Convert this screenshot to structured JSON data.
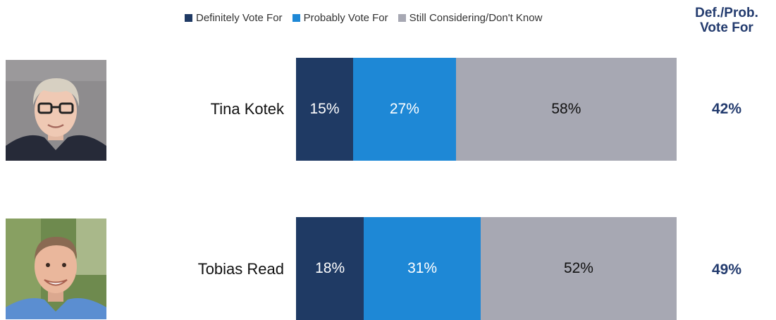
{
  "colors": {
    "definitely": "#1f3a64",
    "probably": "#1e88d6",
    "considering": "#a7a8b3",
    "total_text": "#233b6e"
  },
  "legend": {
    "items": [
      {
        "label": "Definitely Vote For",
        "color": "#1f3a64"
      },
      {
        "label": "Probably Vote For",
        "color": "#1e88d6"
      },
      {
        "label": "Still Considering/Don't Know",
        "color": "#a7a8b3"
      }
    ]
  },
  "total_header": {
    "line1": "Def./Prob.",
    "line2": "Vote For"
  },
  "chart_data": {
    "type": "bar",
    "orientation": "horizontal",
    "stacked": true,
    "normalized_to": 100,
    "categories": [
      "Tina Kotek",
      "Tobias Read"
    ],
    "series": [
      {
        "name": "Definitely Vote For",
        "values": [
          15,
          18
        ],
        "labels": [
          "15%",
          "18%"
        ]
      },
      {
        "name": "Probably Vote For",
        "values": [
          27,
          31
        ],
        "labels": [
          "27%",
          "31%"
        ]
      },
      {
        "name": "Still Considering/Don't Know",
        "values": [
          58,
          52
        ],
        "labels": [
          "58%",
          "52%"
        ]
      }
    ],
    "totals": {
      "name": "Def./Prob. Vote For",
      "values": [
        42,
        49
      ],
      "labels": [
        "42%",
        "49%"
      ]
    },
    "legend_position": "top",
    "grid": false
  },
  "candidates": [
    {
      "name": "Tina Kotek",
      "photo_icon": "candidate-photo-icon"
    },
    {
      "name": "Tobias Read",
      "photo_icon": "candidate-photo-icon"
    }
  ]
}
